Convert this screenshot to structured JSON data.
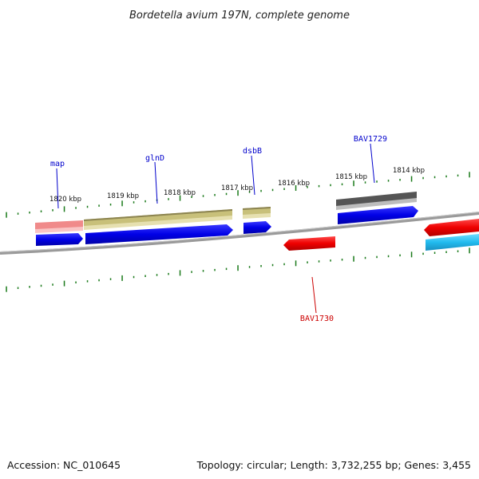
{
  "title": "Bordetella avium 197N, complete genome",
  "footer": {
    "accession": "Accession: NC_010645",
    "summary": "Topology: circular; Length: 3,732,255 bp; Genes: 3,455"
  },
  "scale_labels": [
    "1820 kbp",
    "1819 kbp",
    "1818 kbp",
    "1817 kbp",
    "1816 kbp",
    "1815 kbp",
    "1814 kbp"
  ],
  "genes": [
    {
      "id": "map",
      "label": "map",
      "strand": "forward",
      "color": "#0000ee",
      "label_color": "#0000cc",
      "annotation_color": "#f08a8a"
    },
    {
      "id": "glnD",
      "label": "glnD",
      "strand": "forward",
      "color": "#0000ee",
      "label_color": "#0000cc",
      "annotation_color": "#c8c07a"
    },
    {
      "id": "dsbB",
      "label": "dsbB",
      "strand": "forward",
      "color": "#0000ee",
      "label_color": "#0000cc",
      "annotation_color": "#c8c07a"
    },
    {
      "id": "BAV1729",
      "label": "BAV1729",
      "strand": "forward",
      "color": "#0000ee",
      "label_color": "#0000cc",
      "annotation_color": "#555555"
    },
    {
      "id": "BAV1730",
      "label": "BAV1730",
      "strand": "reverse",
      "color": "#ee0000",
      "label_color": "#cc0000"
    },
    {
      "id": "next-reverse",
      "label": "",
      "strand": "reverse",
      "color": "#ee0000"
    },
    {
      "id": "next-cyan",
      "label": "",
      "strand": "reverse",
      "color": "#22bbee"
    }
  ],
  "colors": {
    "backbone": "#8c8c8c",
    "tick": "#1a7a1a",
    "forward": "#0000ee",
    "reverse": "#ee0000"
  }
}
